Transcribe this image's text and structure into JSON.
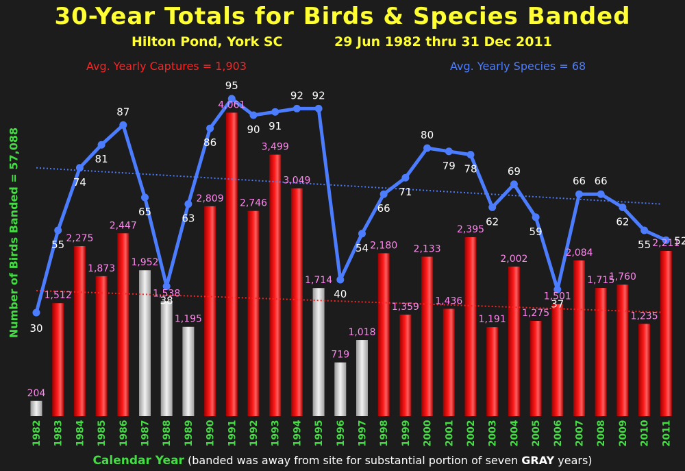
{
  "header": {
    "title": "30-Year Totals for Birds & Species Banded",
    "location": "Hilton Pond, York SC",
    "dates": "29 Jun 1982 thru 31 Dec 2011",
    "avg_captures": "Avg. Yearly Captures = 1,903",
    "avg_species": "Avg. Yearly Species = 68"
  },
  "axis": {
    "ylabel": "Number of Birds Banded = 57,088",
    "xlabel_main": "Calendar Year",
    "xlabel_note_pre": " (banded was away from site for substantial portion of seven ",
    "xlabel_note_bold": "GRAY",
    "xlabel_note_post": " years)"
  },
  "colors": {
    "bar_red": "#ff1a1a",
    "bar_gray": "#f2f2f2",
    "species_line": "#4d7dff",
    "bar_label": "#ff88ee",
    "species_label": "#ffffff",
    "year_label": "#44dd44",
    "trend_captures": "#ff2222",
    "trend_species": "#4d7dff"
  },
  "chart_data": {
    "type": "bar",
    "title": "30-Year Totals for Birds & Species Banded",
    "xlabel": "Calendar Year",
    "ylabel": "Number of Birds Banded = 57,088",
    "categories": [
      "1982",
      "1983",
      "1984",
      "1985",
      "1986",
      "1987",
      "1988",
      "1989",
      "1990",
      "1991",
      "1992",
      "1993",
      "1994",
      "1995",
      "1996",
      "1997",
      "1998",
      "1999",
      "2000",
      "2001",
      "2002",
      "2003",
      "2004",
      "2005",
      "2006",
      "2007",
      "2008",
      "2009",
      "2010",
      "2011"
    ],
    "series": [
      {
        "type": "bar",
        "values": [
          204,
          1512,
          2275,
          1873,
          2447,
          1952,
          1538,
          1195,
          2809,
          4061,
          2746,
          3499,
          3049,
          1714,
          719,
          1018,
          2180,
          1359,
          2133,
          1436,
          2395,
          1191,
          2002,
          1275,
          1501,
          2084,
          1715,
          1760,
          1235,
          2211
        ],
        "labels": [
          "204",
          "1,512",
          "2,275",
          "1,873",
          "2,447",
          "1,952",
          "1,538",
          "1,195",
          "2,809",
          "4,061",
          "2,746",
          "3,499",
          "3,049",
          "1,714",
          "719",
          "1,018",
          "2,180",
          "1,359",
          "2,133",
          "1,436",
          "2,395",
          "1,191",
          "2,002",
          "1,275",
          "1,501",
          "2,084",
          "1,715",
          "1,760",
          "1,235",
          "2,211"
        ],
        "gray_years": [
          "1982",
          "1987",
          "1988",
          "1989",
          "1995",
          "1996",
          "1997"
        ]
      },
      {
        "type": "line",
        "values": [
          30,
          55,
          74,
          81,
          87,
          65,
          38,
          63,
          86,
          95,
          90,
          91,
          92,
          92,
          40,
          54,
          66,
          71,
          80,
          79,
          78,
          62,
          69,
          59,
          37,
          66,
          66,
          62,
          55,
          52
        ]
      }
    ],
    "trendlines": {
      "captures": {
        "start": 1680,
        "end": 1390
      },
      "species": {
        "start": 74,
        "end": 63
      }
    },
    "grid": false
  }
}
